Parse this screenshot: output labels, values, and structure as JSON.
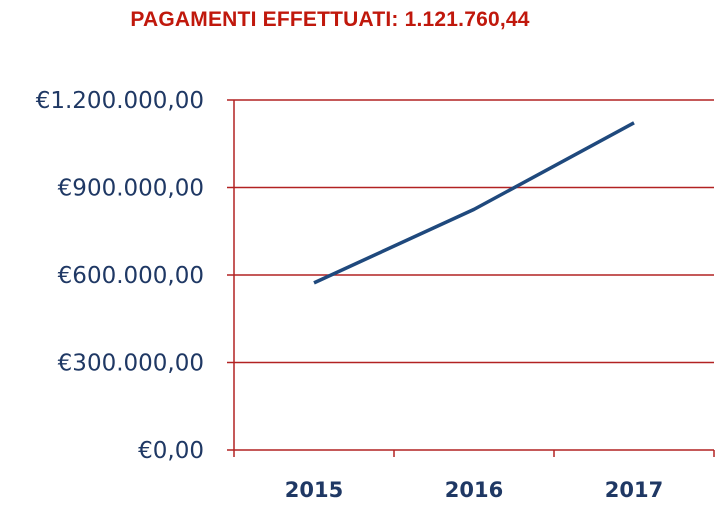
{
  "chart_data": {
    "type": "line",
    "title": "PAGAMENTI EFFETTUATI: 1.121.760,44",
    "xlabel": "",
    "ylabel": "",
    "categories": [
      "2015",
      "2016",
      "2017"
    ],
    "series": [
      {
        "values": [
          573000,
          825000,
          1121760.44
        ]
      }
    ],
    "ylim": [
      0,
      1200000
    ],
    "yticks": [
      0,
      300000,
      600000,
      900000,
      1200000
    ],
    "ytick_labels": [
      "€0,00",
      "€300.000,00",
      "€600.000,00",
      "€900.000,00",
      "€1.200.000,00"
    ],
    "grid": "horizontal",
    "legend": "none",
    "colors": {
      "line": "#1f497d",
      "grid": "#b22222",
      "axis": "#b22222",
      "text": "#1f3864",
      "title": "#c0180c"
    }
  }
}
